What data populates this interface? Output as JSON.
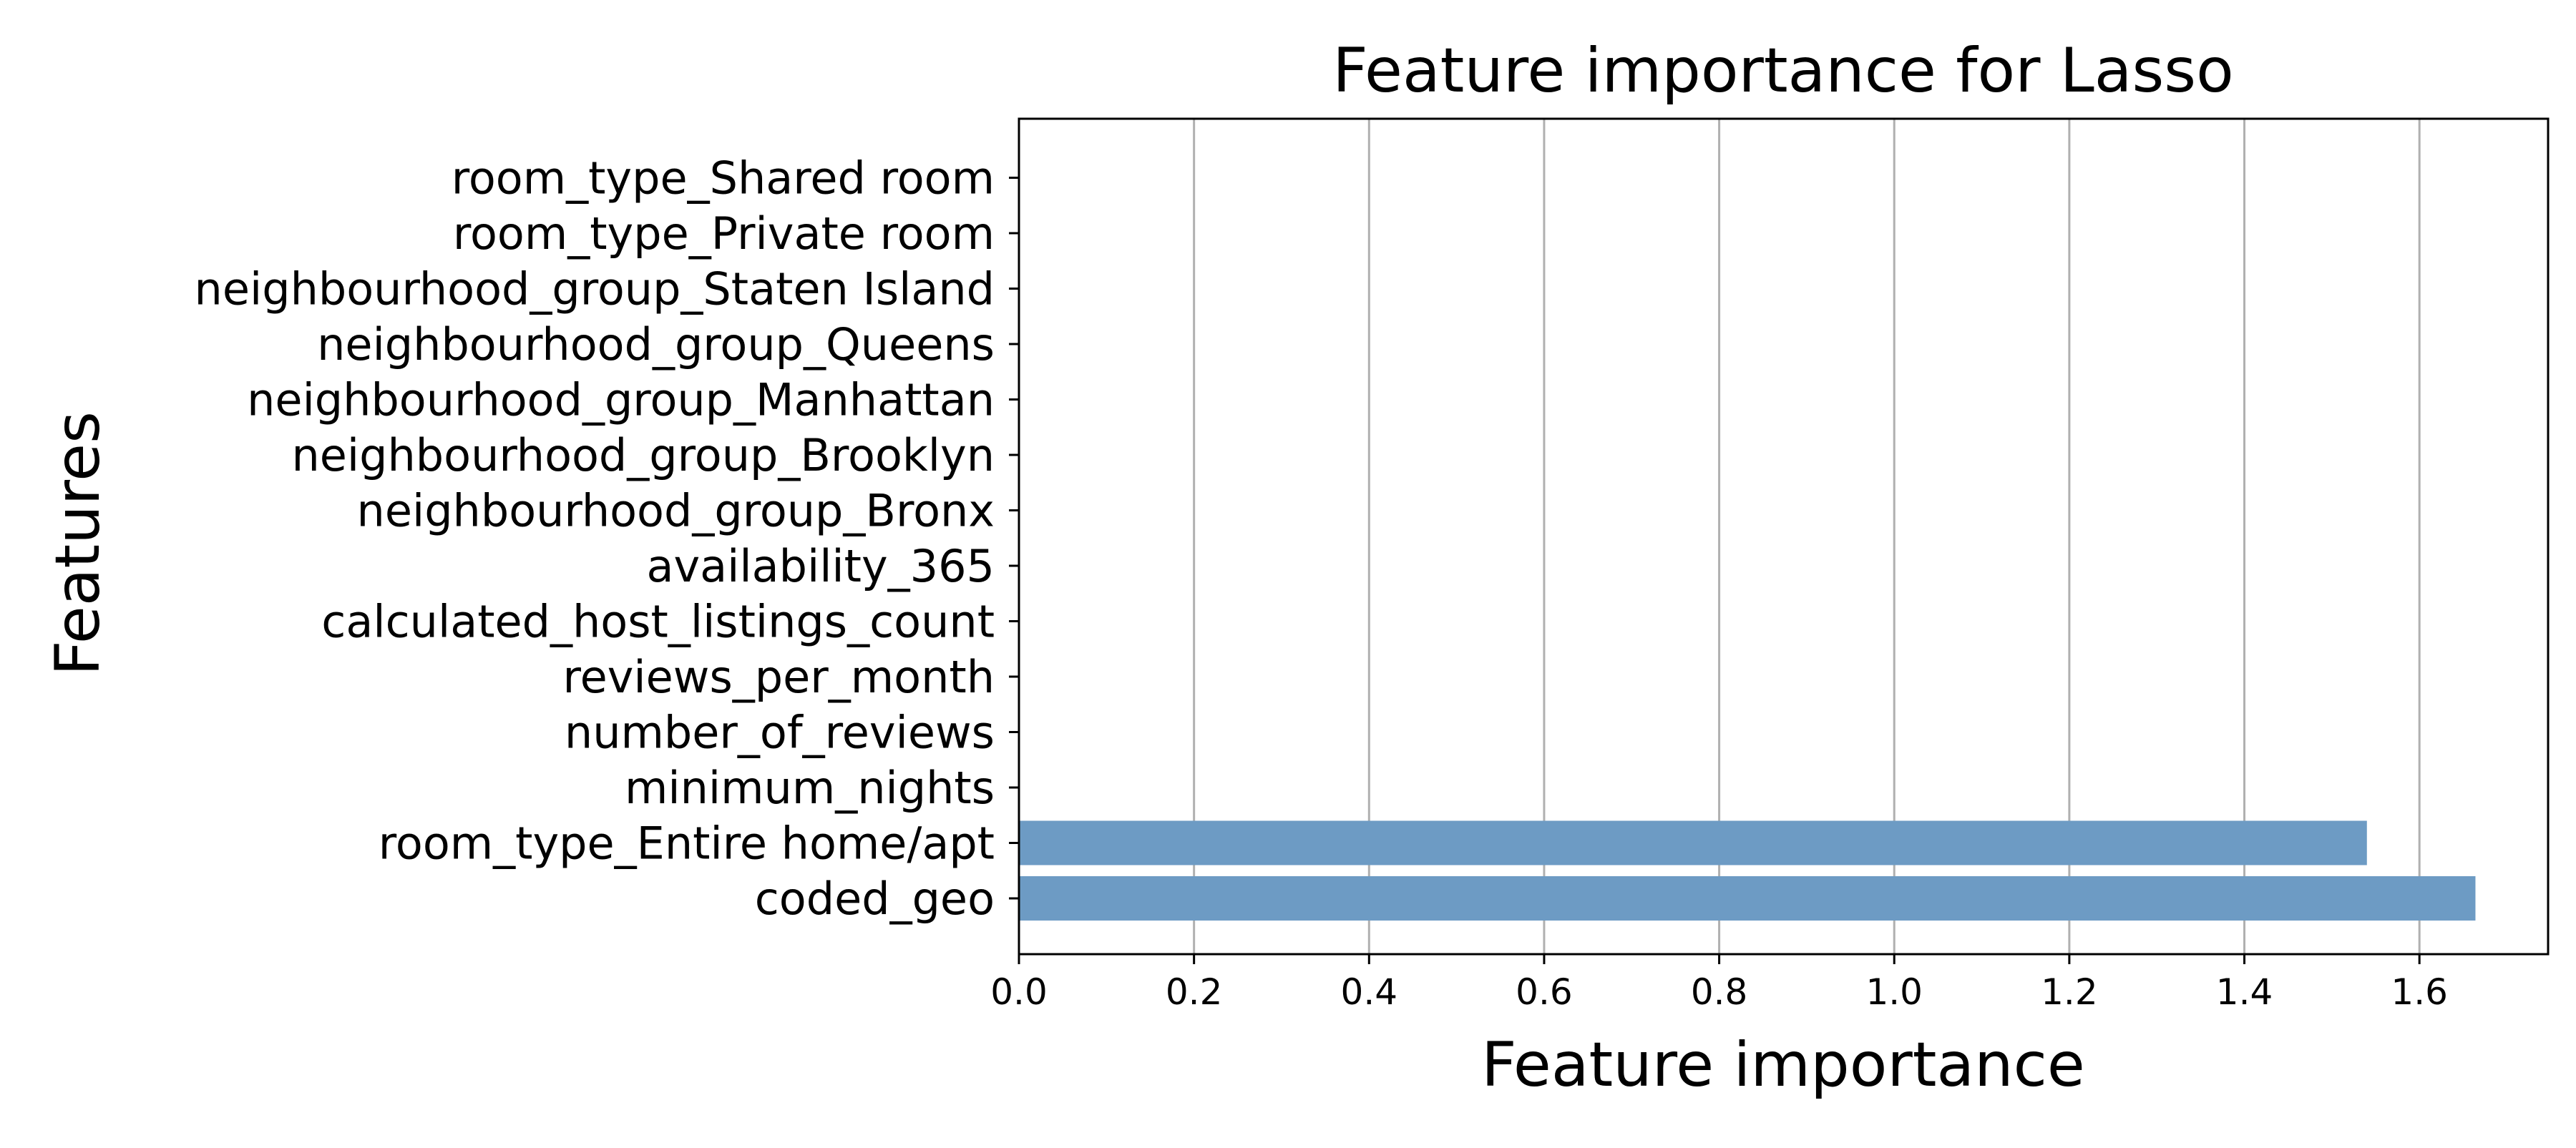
{
  "chart_data": {
    "type": "bar",
    "orientation": "horizontal",
    "title": "Feature importance for Lasso",
    "xlabel": "Feature importance",
    "ylabel": "Features",
    "categories": [
      "coded_geo",
      "room_type_Entire home/apt",
      "minimum_nights",
      "number_of_reviews",
      "reviews_per_month",
      "calculated_host_listings_count",
      "availability_365",
      "neighbourhood_group_Bronx",
      "neighbourhood_group_Brooklyn",
      "neighbourhood_group_Manhattan",
      "neighbourhood_group_Queens",
      "neighbourhood_group_Staten Island",
      "room_type_Private room",
      "room_type_Shared room"
    ],
    "values": [
      1.664,
      1.54,
      0,
      0,
      0,
      0,
      0,
      0,
      0,
      0,
      0,
      0,
      0,
      0
    ],
    "xlim": [
      0,
      1.747
    ],
    "xticks": [
      0.0,
      0.2,
      0.4,
      0.6,
      0.8,
      1.0,
      1.2,
      1.4,
      1.6
    ],
    "xtick_labels": [
      "0.0",
      "0.2",
      "0.4",
      "0.6",
      "0.8",
      "1.0",
      "1.2",
      "1.4",
      "1.6"
    ],
    "grid": "x",
    "legend": "none",
    "colors": {
      "bar": "#6d9bc4",
      "grid": "#b0b0b0",
      "axis": "#000000"
    }
  }
}
